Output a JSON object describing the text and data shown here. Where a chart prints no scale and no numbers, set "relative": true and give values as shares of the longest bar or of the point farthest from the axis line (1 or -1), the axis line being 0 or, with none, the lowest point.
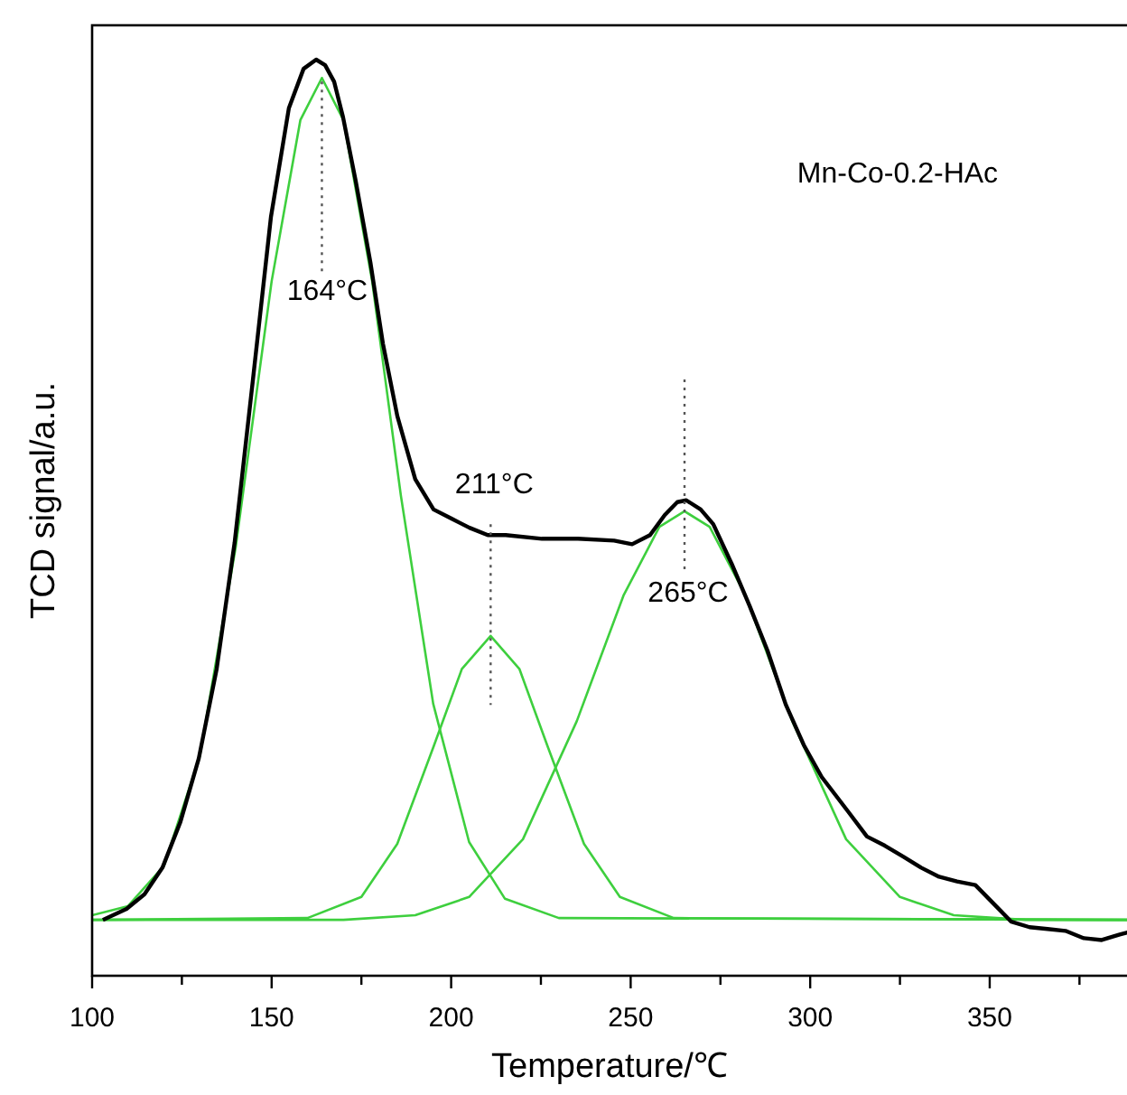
{
  "chart_data": {
    "type": "line",
    "relative": true,
    "title": "Mn-Co-0.2-HAc",
    "xlabel": "Temperature/℃",
    "ylabel": "TCD signal/a.u.",
    "xlim": [
      100,
      390
    ],
    "xticks": [
      100,
      {
        "value": 125,
        "label": null
      },
      150,
      {
        "value": 175,
        "label": null
      },
      200,
      {
        "value": 225,
        "label": null
      },
      250,
      {
        "value": 275,
        "label": null
      },
      300,
      {
        "value": 325,
        "label": null
      },
      350,
      {
        "value": 375,
        "label": null
      }
    ],
    "grid": false,
    "marker": "none",
    "line_style": "solid",
    "series": [
      {
        "color": "#3ecf3e",
        "x": [
          100,
          110,
          120,
          130,
          140,
          150,
          158,
          164,
          170,
          178,
          186,
          195,
          205,
          215,
          230,
          390
        ],
        "values": [
          0.066,
          0.076,
          0.12,
          0.24,
          0.468,
          0.758,
          0.934,
          0.98,
          0.934,
          0.758,
          0.524,
          0.297,
          0.146,
          0.084,
          0.063,
          0.061
        ]
      },
      {
        "color": "#3ecf3e",
        "x": [
          100,
          160,
          175,
          185,
          195,
          203,
          211,
          219,
          227,
          237,
          247,
          262,
          390
        ],
        "values": [
          0.061,
          0.063,
          0.086,
          0.144,
          0.249,
          0.335,
          0.371,
          0.335,
          0.249,
          0.144,
          0.086,
          0.063,
          0.061
        ]
      },
      {
        "color": "#3ecf3e",
        "x": [
          100,
          170,
          190,
          205,
          220,
          235,
          248,
          258,
          265,
          272,
          282,
          295,
          310,
          325,
          340,
          360,
          390
        ],
        "values": [
          0.061,
          0.061,
          0.066,
          0.086,
          0.149,
          0.278,
          0.415,
          0.49,
          0.507,
          0.49,
          0.415,
          0.278,
          0.149,
          0.086,
          0.066,
          0.061,
          0.061
        ]
      },
      {
        "color": "#000000",
        "x": [
          103,
          109.6,
          114.6,
          119.6,
          124.6,
          129.7,
          134.7,
          139.7,
          144.8,
          149.8,
          154.8,
          158.9,
          162.4,
          164.9,
          167.4,
          169.9,
          173.4,
          177.5,
          181,
          185,
          190,
          195.1,
          200.1,
          205.1,
          210.2,
          215.2,
          225.3,
          235.3,
          245.4,
          250.4,
          255.4,
          259.5,
          263,
          265.5,
          269.5,
          273,
          278.1,
          283.1,
          288.1,
          293.2,
          298.2,
          303.2,
          310.8,
          315.8,
          320.8,
          325.9,
          330.9,
          335.9,
          340.9,
          346,
          351,
          356,
          361.1,
          366.1,
          371.1,
          376.2,
          381.2,
          386.2,
          390
        ],
        "values": [
          0.061,
          0.073,
          0.089,
          0.118,
          0.168,
          0.237,
          0.335,
          0.473,
          0.651,
          0.828,
          0.947,
          0.99,
          1,
          0.994,
          0.976,
          0.937,
          0.868,
          0.779,
          0.69,
          0.611,
          0.542,
          0.509,
          0.499,
          0.489,
          0.481,
          0.481,
          0.477,
          0.477,
          0.475,
          0.471,
          0.481,
          0.503,
          0.517,
          0.519,
          0.509,
          0.493,
          0.45,
          0.404,
          0.355,
          0.296,
          0.252,
          0.217,
          0.178,
          0.152,
          0.142,
          0.13,
          0.118,
          0.108,
          0.103,
          0.099,
          0.079,
          0.059,
          0.053,
          0.051,
          0.049,
          0.041,
          0.039,
          0.045,
          0.049
        ]
      }
    ],
    "annotations": [
      {
        "text": "164°C",
        "x": 164,
        "y": 0.98
      },
      {
        "text": "211°C",
        "x": 211,
        "y": 0.481
      },
      {
        "text": "265°C",
        "x": 265,
        "y": 0.507
      }
    ]
  }
}
